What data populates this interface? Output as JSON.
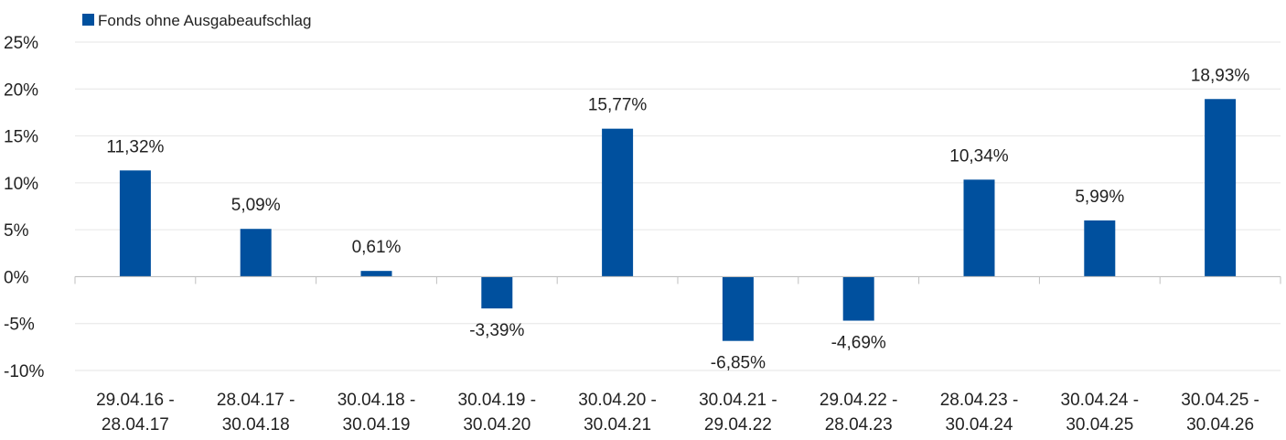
{
  "chart_data": {
    "type": "bar",
    "title": "",
    "xlabel": "",
    "ylabel": "",
    "categories": [
      [
        "29.04.16 -",
        "28.04.17"
      ],
      [
        "28.04.17 -",
        "30.04.18"
      ],
      [
        "30.04.18 -",
        "30.04.19"
      ],
      [
        "30.04.19 -",
        "30.04.20"
      ],
      [
        "30.04.20 -",
        "30.04.21"
      ],
      [
        "30.04.21 -",
        "29.04.22"
      ],
      [
        "29.04.22 -",
        "28.04.23"
      ],
      [
        "28.04.23 -",
        "30.04.24"
      ],
      [
        "30.04.24 -",
        "30.04.25"
      ],
      [
        "30.04.25 -",
        "30.04.26"
      ]
    ],
    "series": [
      {
        "name": "Fonds ohne Ausgabeaufschlag",
        "values": [
          11.32,
          5.09,
          0.61,
          -3.39,
          15.77,
          -6.85,
          -4.69,
          10.34,
          5.99,
          18.93
        ],
        "labels": [
          "11,32%",
          "5,09%",
          "0,61%",
          "-3,39%",
          "15,77%",
          "-6,85%",
          "-4,69%",
          "10,34%",
          "5,99%",
          "18,93%"
        ],
        "color": "#00509e"
      }
    ],
    "ylim": [
      -10,
      25
    ],
    "yticks": [
      25,
      20,
      15,
      10,
      5,
      0,
      -5,
      -10
    ],
    "ytick_labels": [
      "25%",
      "20%",
      "15%",
      "10%",
      "5%",
      "0%",
      "-5%",
      "-10%"
    ],
    "grid": true,
    "legend_position": "top-left",
    "colors": {
      "bar": "#00509e",
      "grid": "#e6e6e6",
      "axis": "#bfbfbf",
      "text": "#222222"
    }
  }
}
